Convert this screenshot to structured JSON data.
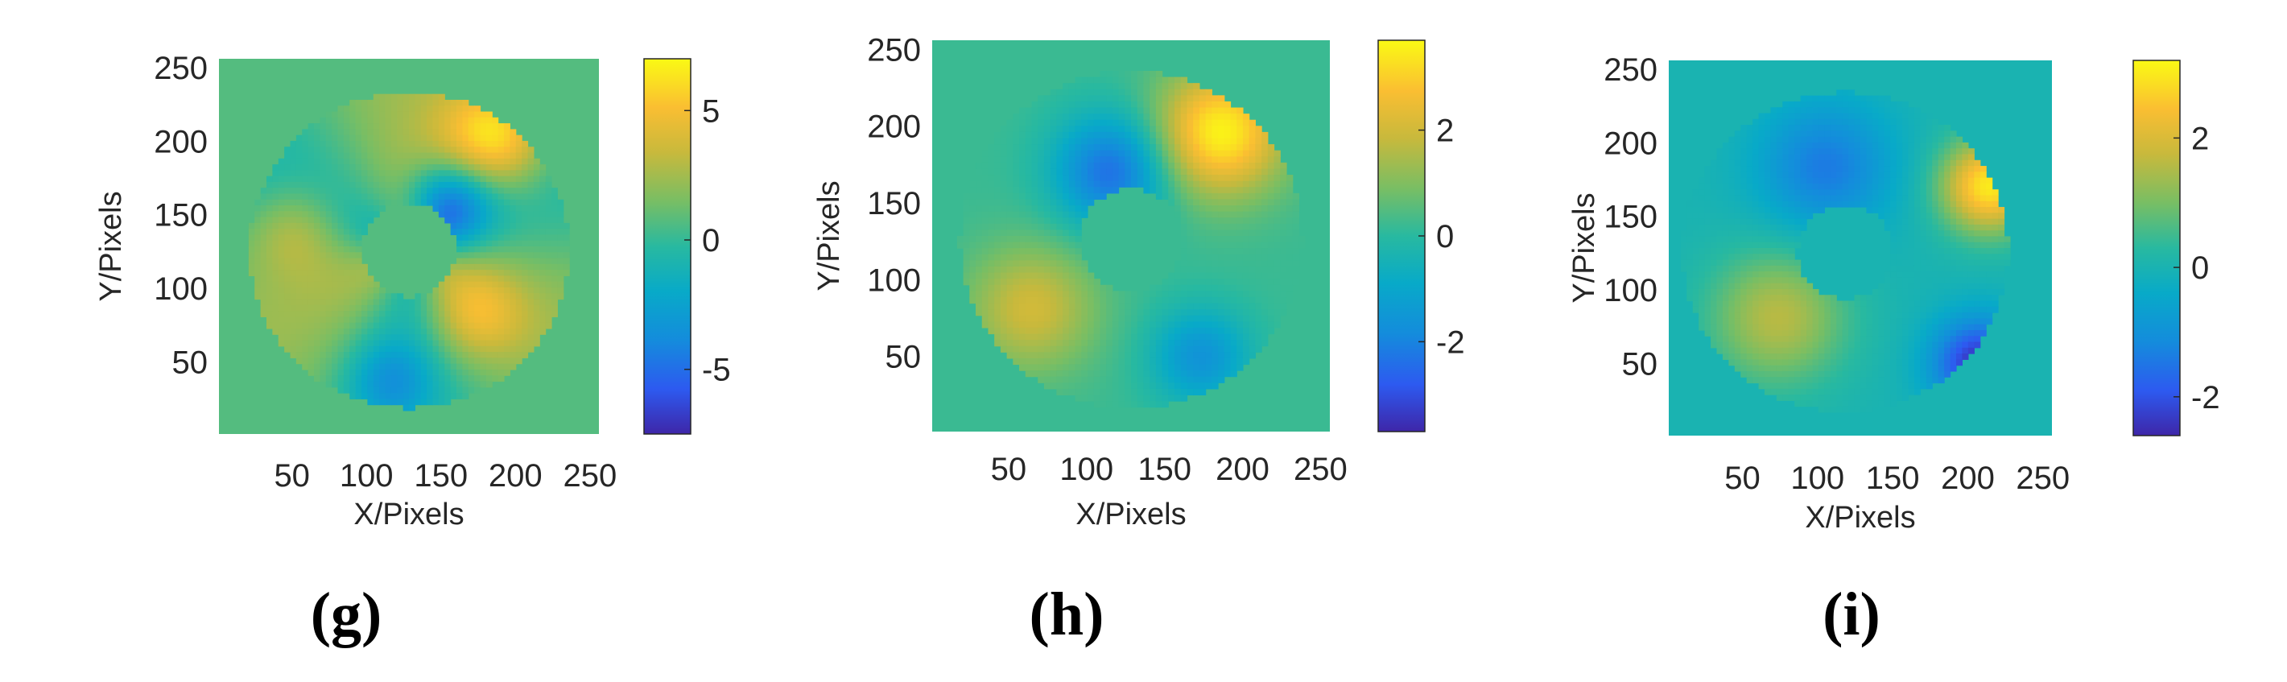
{
  "chart_data": [
    {
      "type": "heatmap",
      "caption": "(g)",
      "xlabel": "X/Pixels",
      "ylabel": "Y/Pixels",
      "xticks": [
        "50",
        "100",
        "150",
        "200",
        "250"
      ],
      "yticks": [
        "50",
        "100",
        "150",
        "200",
        "250"
      ],
      "xtick_values": [
        50,
        100,
        150,
        200,
        250
      ],
      "ytick_values": [
        50,
        100,
        150,
        200,
        250
      ],
      "xlim": [
        1,
        256
      ],
      "ylim": [
        1,
        256
      ],
      "colorbar": {
        "min": -7.5,
        "max": 7,
        "ticks": [
          "5",
          "0",
          "-5"
        ],
        "tick_values": [
          5,
          0,
          -5
        ]
      },
      "background_value": 0.7
    },
    {
      "type": "heatmap",
      "caption": "(h)",
      "xlabel": "X/Pixels",
      "ylabel": "Y/Pixels",
      "xticks": [
        "50",
        "100",
        "150",
        "200",
        "250"
      ],
      "yticks": [
        "50",
        "100",
        "150",
        "200",
        "250"
      ],
      "xtick_values": [
        50,
        100,
        150,
        200,
        250
      ],
      "ytick_values": [
        50,
        100,
        150,
        200,
        250
      ],
      "xlim": [
        1,
        256
      ],
      "ylim": [
        1,
        256
      ],
      "colorbar": {
        "min": -3.7,
        "max": 3.7,
        "ticks": [
          "2",
          "0",
          "-2"
        ],
        "tick_values": [
          2,
          0,
          -2
        ]
      },
      "background_value": 0.2
    },
    {
      "type": "heatmap",
      "caption": "(i)",
      "xlabel": "X/Pixels",
      "ylabel": "Y/Pixels",
      "xticks": [
        "50",
        "100",
        "150",
        "200",
        "250"
      ],
      "yticks": [
        "50",
        "100",
        "150",
        "200",
        "250"
      ],
      "xtick_values": [
        50,
        100,
        150,
        200,
        250
      ],
      "ytick_values": [
        50,
        100,
        150,
        200,
        250
      ],
      "xlim": [
        1,
        256
      ],
      "ylim": [
        1,
        256
      ],
      "colorbar": {
        "min": -2.6,
        "max": 3.2,
        "ticks": [
          "2",
          "0",
          "-2"
        ],
        "tick_values": [
          2,
          0,
          -2
        ]
      },
      "background_value": 0.0
    }
  ]
}
